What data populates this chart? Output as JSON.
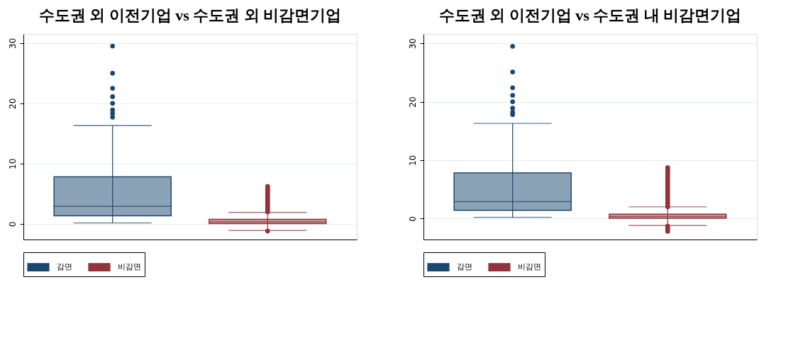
{
  "chart_data": [
    {
      "type": "box",
      "title": "수도권 외 이전기업 vs 수도권 외 비감면기업",
      "categories": [
        null
      ],
      "ylim": [
        -2.6,
        31.5
      ],
      "yticks": [
        0,
        10,
        20,
        30
      ],
      "grid": "y",
      "legend": "bottom",
      "tick_labels": "y",
      "series": [
        {
          "name": "감면",
          "color": "#1a476f",
          "boxes": [
            {
              "low": 0.15,
              "q1": 1.35,
              "median": 2.9,
              "q3": 7.8,
              "high": 16.3,
              "outliers": [
                17.7,
                18.3,
                18.9,
                20.0,
                21.1,
                22.5,
                25.0,
                29.5
              ]
            }
          ]
        },
        {
          "name": "비감면",
          "color": "#90353b",
          "boxes": [
            {
              "low": -1.1,
              "q1": 0.05,
              "median": 0.3,
              "q3": 0.75,
              "high": 1.9,
              "outliers": [
                -1.2,
                2.0,
                2.3,
                2.6,
                2.9,
                3.2,
                3.5,
                3.8,
                4.1,
                4.4,
                4.7,
                5.0,
                5.3,
                5.6,
                5.9,
                6.2
              ]
            }
          ]
        }
      ]
    },
    {
      "type": "box",
      "title": "수도권 외 이전기업 vs 수도권 내 비감면기업",
      "categories": [
        null
      ],
      "ylim": [
        -3.6,
        31.6
      ],
      "yticks": [
        0,
        10,
        20,
        30
      ],
      "grid": "y",
      "legend": "bottom",
      "tick_labels": "y",
      "series": [
        {
          "name": "감면",
          "color": "#1a476f",
          "boxes": [
            {
              "low": 0.2,
              "q1": 1.4,
              "median": 2.9,
              "q3": 7.8,
              "high": 16.3,
              "outliers": [
                17.8,
                18.2,
                18.9,
                20.0,
                21.1,
                22.4,
                25.1,
                29.5
              ]
            }
          ]
        },
        {
          "name": "비감면",
          "color": "#90353b",
          "boxes": [
            {
              "low": -1.2,
              "q1": 0.05,
              "median": 0.35,
              "q3": 0.75,
              "high": 2.0,
              "outliers": [
                -2.2,
                -1.9,
                -1.6,
                -1.3,
                2.0,
                2.4,
                2.8,
                3.2,
                3.6,
                4.0,
                4.4,
                4.8,
                5.2,
                5.6,
                6.0,
                6.4,
                6.8,
                7.2,
                7.6,
                8.0,
                8.4,
                8.7
              ]
            }
          ]
        }
      ]
    }
  ]
}
